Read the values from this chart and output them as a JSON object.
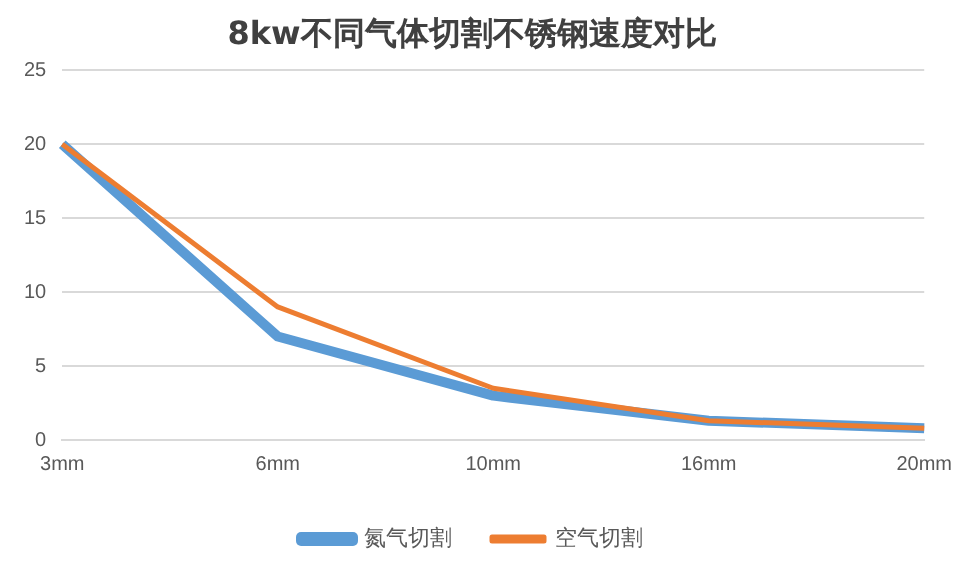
{
  "chart_data": {
    "type": "line",
    "title": "8kw不同气体切割不锈钢速度对比",
    "categories": [
      "3mm",
      "6mm",
      "10mm",
      "16mm",
      "20mm"
    ],
    "series": [
      {
        "name": "氮气切割",
        "color": "#5b9bd5",
        "values": [
          20,
          7,
          3,
          1.3,
          0.8
        ]
      },
      {
        "name": "空气切割",
        "color": "#ed7d31",
        "values": [
          20,
          9,
          3.5,
          1.3,
          0.8
        ]
      }
    ],
    "ylim": [
      0,
      25
    ],
    "yticks": [
      0,
      5,
      10,
      15,
      20,
      25
    ],
    "grid": "y",
    "legend": "bottom",
    "marker": "none",
    "line_style": "solid"
  }
}
